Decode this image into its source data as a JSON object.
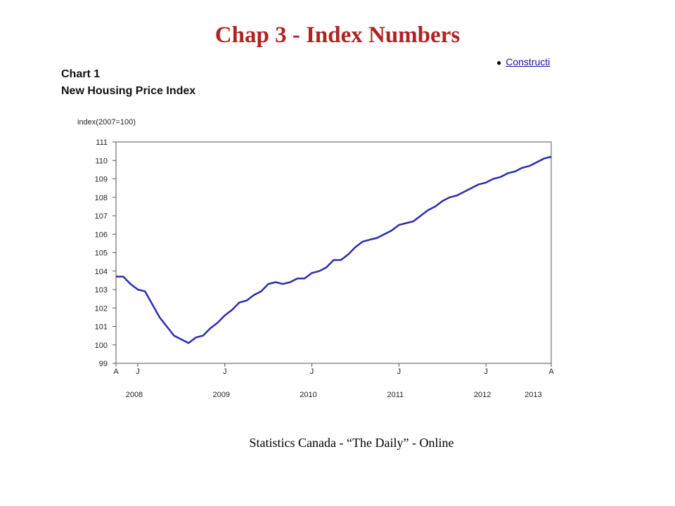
{
  "slide": {
    "title": "Chap 3 - Index Numbers",
    "source": "Statistics Canada - “The Daily” - Online",
    "cropped_link": "Constructi"
  },
  "chart_data": {
    "type": "line",
    "chart_number": "Chart 1",
    "title": "New Housing Price Index",
    "ylabel": "index(2007=100)",
    "xlabel": "",
    "ylim": [
      99,
      111
    ],
    "yticks": [
      99,
      100,
      101,
      102,
      103,
      104,
      105,
      106,
      107,
      108,
      109,
      110,
      111
    ],
    "x_start": "2008-04",
    "x_end": "2013-04",
    "month_ticks": [
      {
        "month": "2008-04",
        "label": "A"
      },
      {
        "month": "2008-07",
        "label": "J"
      },
      {
        "month": "2009-07",
        "label": "J"
      },
      {
        "month": "2010-07",
        "label": "J"
      },
      {
        "month": "2011-07",
        "label": "J"
      },
      {
        "month": "2012-07",
        "label": "J"
      },
      {
        "month": "2013-04",
        "label": "A"
      }
    ],
    "year_labels": [
      {
        "label": "2008",
        "at": "2008-07"
      },
      {
        "label": "2009",
        "at": "2009-07"
      },
      {
        "label": "2010",
        "at": "2010-07"
      },
      {
        "label": "2011",
        "at": "2011-07"
      },
      {
        "label": "2012",
        "at": "2012-07"
      },
      {
        "label": "2013",
        "at": "2013-02"
      }
    ],
    "grid": false,
    "line_color": "#2b2bb0",
    "series": [
      {
        "x": [
          "2008-04",
          "2008-05",
          "2008-06",
          "2008-07",
          "2008-08",
          "2008-09",
          "2008-10",
          "2008-11",
          "2008-12",
          "2009-01",
          "2009-02",
          "2009-03",
          "2009-04",
          "2009-05",
          "2009-06",
          "2009-07",
          "2009-08",
          "2009-09",
          "2009-10",
          "2009-11",
          "2009-12",
          "2010-01",
          "2010-02",
          "2010-03",
          "2010-04",
          "2010-05",
          "2010-06",
          "2010-07",
          "2010-08",
          "2010-09",
          "2010-10",
          "2010-11",
          "2010-12",
          "2011-01",
          "2011-02",
          "2011-03",
          "2011-04",
          "2011-05",
          "2011-06",
          "2011-07",
          "2011-08",
          "2011-09",
          "2011-10",
          "2011-11",
          "2011-12",
          "2012-01",
          "2012-02",
          "2012-03",
          "2012-04",
          "2012-05",
          "2012-06",
          "2012-07",
          "2012-08",
          "2012-09",
          "2012-10",
          "2012-11",
          "2012-12",
          "2013-01",
          "2013-02",
          "2013-03",
          "2013-04"
        ],
        "values": [
          103.7,
          103.7,
          103.3,
          103.0,
          102.9,
          102.2,
          101.5,
          101.0,
          100.5,
          100.3,
          100.1,
          100.4,
          100.5,
          100.9,
          101.2,
          101.6,
          101.9,
          102.3,
          102.4,
          102.7,
          102.9,
          103.3,
          103.4,
          103.3,
          103.4,
          103.6,
          103.6,
          103.9,
          104.0,
          104.2,
          104.6,
          104.6,
          104.9,
          105.3,
          105.6,
          105.7,
          105.8,
          106.0,
          106.2,
          106.5,
          106.6,
          106.7,
          107.0,
          107.3,
          107.5,
          107.8,
          108.0,
          108.1,
          108.3,
          108.5,
          108.7,
          108.8,
          109.0,
          109.1,
          109.3,
          109.4,
          109.6,
          109.7,
          109.9,
          110.1,
          110.2
        ]
      }
    ]
  }
}
